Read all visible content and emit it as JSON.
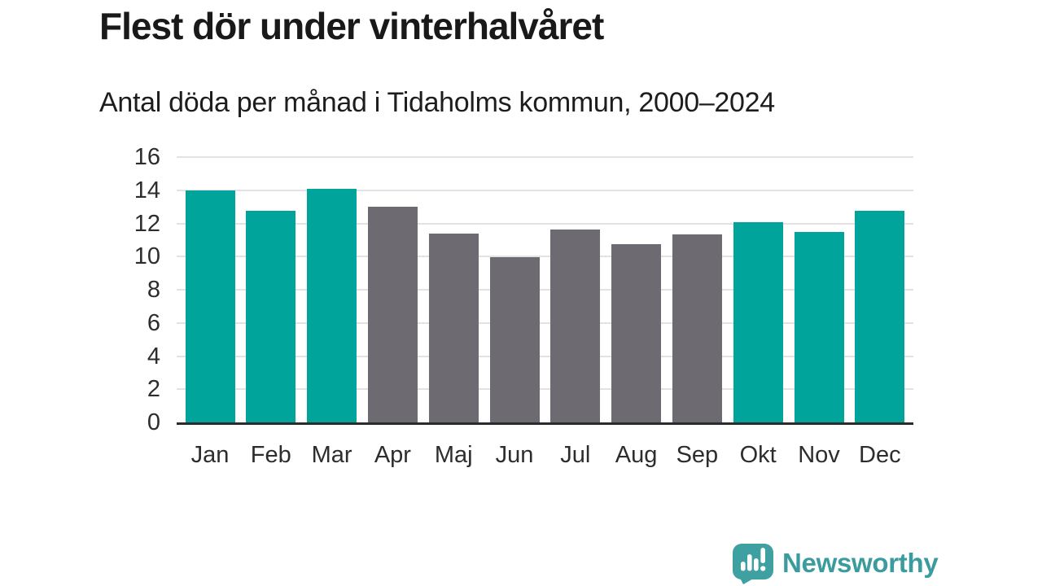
{
  "header": {
    "title": "Flest dör under vinterhalvåret",
    "subtitle": "Antal döda per månad i Tidaholms kommun, 2000–2024"
  },
  "chart_data": {
    "type": "bar",
    "title": "Flest dör under vinterhalvåret",
    "subtitle": "Antal döda per månad i Tidaholms kommun, 2000–2024",
    "categories": [
      "Jan",
      "Feb",
      "Mar",
      "Apr",
      "Maj",
      "Jun",
      "Jul",
      "Aug",
      "Sep",
      "Okt",
      "Nov",
      "Dec"
    ],
    "values": [
      14.0,
      12.75,
      14.1,
      13.0,
      11.4,
      9.95,
      11.65,
      10.75,
      11.35,
      12.05,
      11.5,
      12.75
    ],
    "bar_color_keys": [
      "winter",
      "winter",
      "winter",
      "summer",
      "summer",
      "summer",
      "summer",
      "summer",
      "summer",
      "winter",
      "winter",
      "winter"
    ],
    "palette": {
      "winter": "#00a49a",
      "summer": "#6d6b71"
    },
    "xlabel": "",
    "ylabel": "",
    "ylim": [
      0,
      16
    ],
    "yticks": [
      0,
      2,
      4,
      6,
      8,
      10,
      12,
      14,
      16
    ],
    "grid": "horizontal",
    "legend": "none",
    "axis_color": "#2b2b2b",
    "gridline_color": "#e2e2e2"
  },
  "footer": {
    "brand_name": "Newsworthy",
    "brand_color": "#3a9c9e",
    "brand_icon": "bar-chart-speech-bubble-icon",
    "brand_icon_color": "#3ea0a0"
  }
}
